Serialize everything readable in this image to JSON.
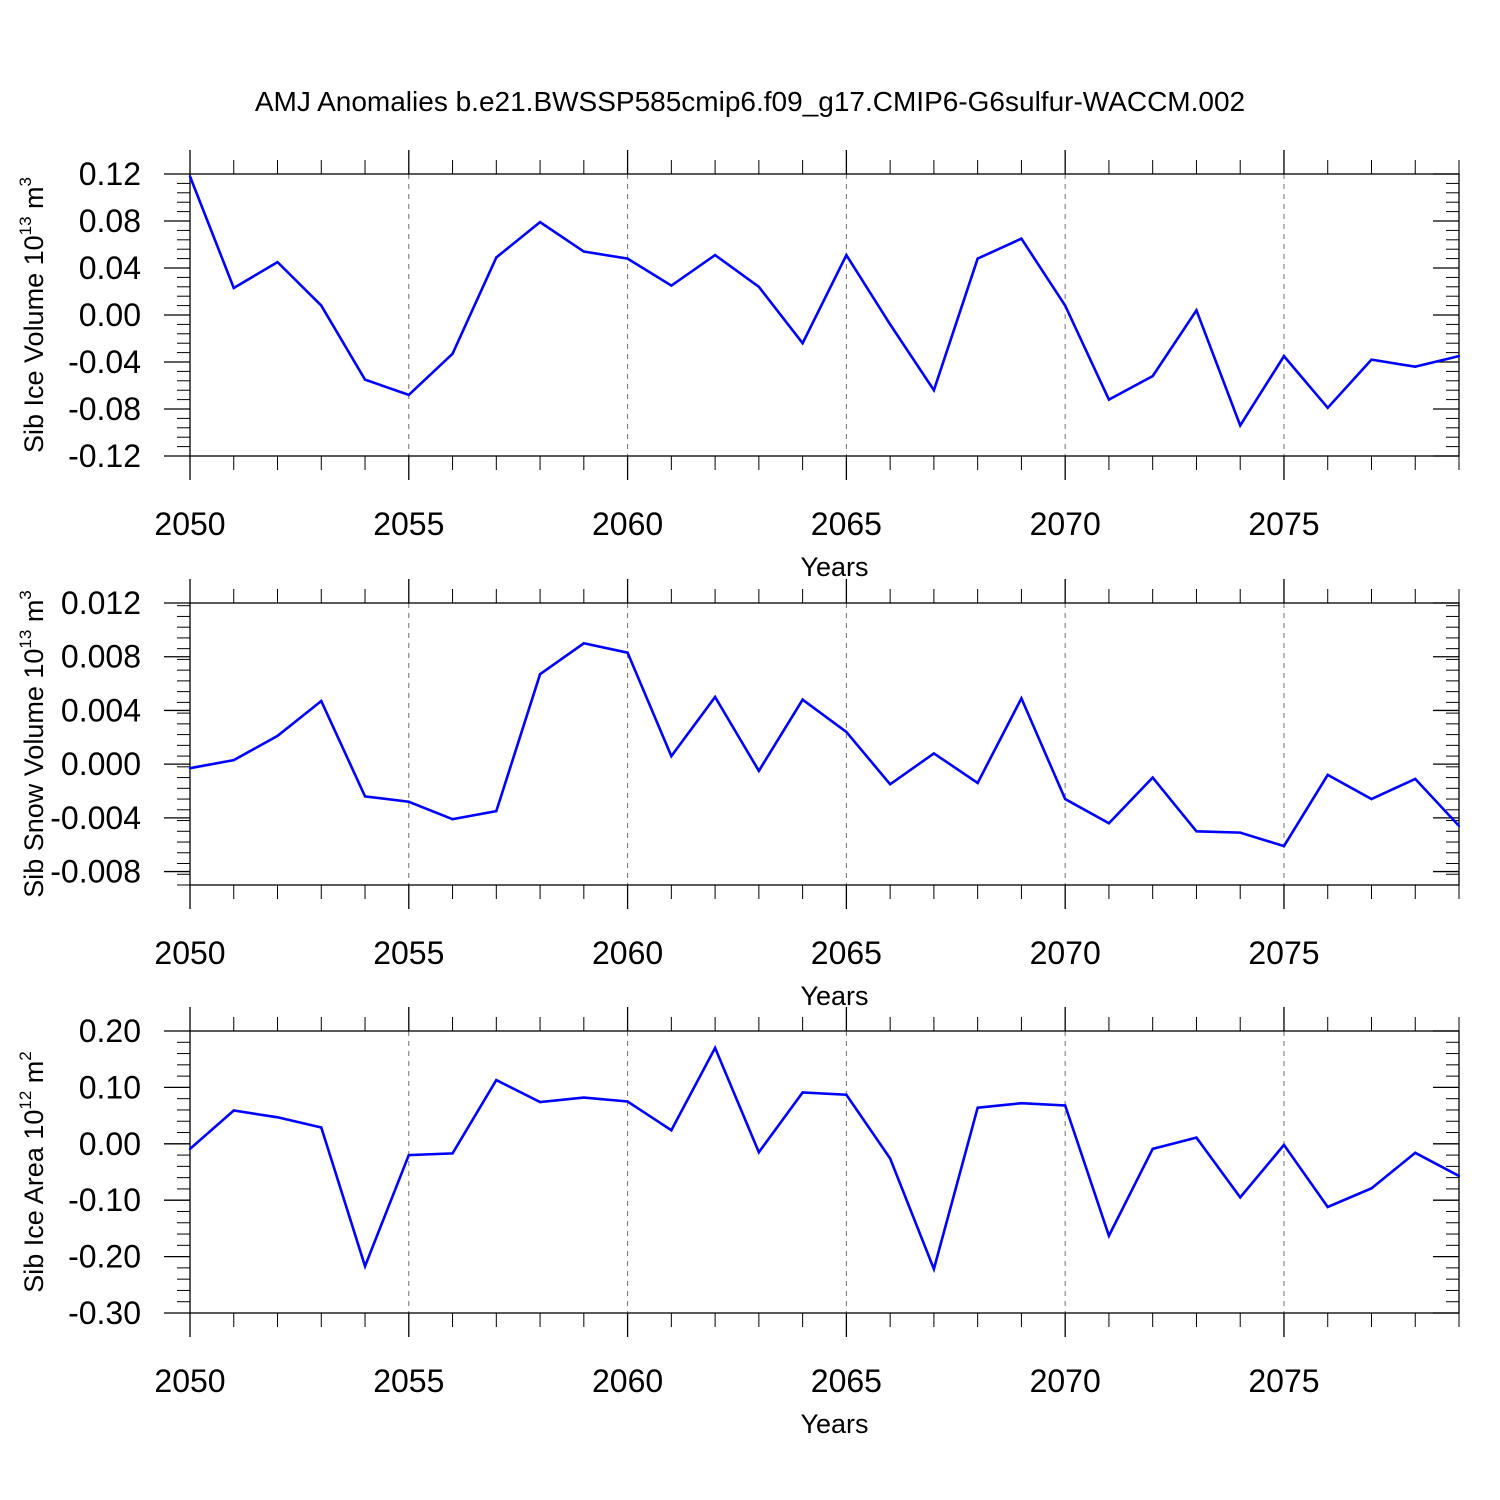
{
  "title": "AMJ Anomalies b.e21.BWSSP585cmip6.f09_g17.CMIP6-G6sulfur-WACCM.002",
  "colors": {
    "line": "#0000ff",
    "axis": "#000000",
    "grid": "#6e6e6e"
  },
  "chart_data": [
    {
      "type": "line",
      "xlabel": "Years",
      "ylabel": {
        "prefix": "Sib Ice Volume 10",
        "exp": "13",
        "unit": " m",
        "unit_exp": "3"
      },
      "xlim": [
        2050,
        2079
      ],
      "ylim": [
        -0.12,
        0.12
      ],
      "xticks": [
        2050,
        2055,
        2060,
        2065,
        2070,
        2075
      ],
      "xtick_labels": [
        "2050",
        "2055",
        "2060",
        "2065",
        "2070",
        "2075"
      ],
      "yticks": [
        -0.12,
        -0.08,
        -0.04,
        0.0,
        0.04,
        0.08,
        0.12
      ],
      "ytick_labels": [
        "-0.12",
        "-0.08",
        "-0.04",
        "0.00",
        "0.04",
        "0.08",
        "0.12"
      ],
      "grid": "vertical dashed at major x ticks",
      "x": [
        2050,
        2051,
        2052,
        2053,
        2054,
        2055,
        2056,
        2057,
        2058,
        2059,
        2060,
        2061,
        2062,
        2063,
        2064,
        2065,
        2066,
        2067,
        2068,
        2069,
        2070,
        2071,
        2072,
        2073,
        2074,
        2075,
        2076,
        2077,
        2078,
        2079
      ],
      "series": [
        {
          "values": [
            0.118,
            0.023,
            0.045,
            0.008,
            -0.055,
            -0.068,
            -0.033,
            0.049,
            0.079,
            0.054,
            0.048,
            0.025,
            0.051,
            0.024,
            -0.024,
            0.051,
            -0.008,
            -0.064,
            0.048,
            0.065,
            0.008,
            -0.072,
            -0.052,
            0.004,
            -0.094,
            -0.035,
            -0.079,
            -0.038,
            -0.044,
            -0.035
          ]
        }
      ]
    },
    {
      "type": "line",
      "xlabel": "Years",
      "ylabel": {
        "prefix": "Sib Snow Volume 10",
        "exp": "13",
        "unit": " m",
        "unit_exp": "3"
      },
      "xlim": [
        2050,
        2079
      ],
      "ylim": [
        -0.009,
        0.012
      ],
      "xticks": [
        2050,
        2055,
        2060,
        2065,
        2070,
        2075
      ],
      "xtick_labels": [
        "2050",
        "2055",
        "2060",
        "2065",
        "2070",
        "2075"
      ],
      "yticks": [
        -0.008,
        -0.004,
        0.0,
        0.004,
        0.008,
        0.012
      ],
      "ytick_labels": [
        "-0.008",
        "-0.004",
        "0.000",
        "0.004",
        "0.008",
        "0.012"
      ],
      "grid": "vertical dashed at major x ticks",
      "x": [
        2050,
        2051,
        2052,
        2053,
        2054,
        2055,
        2056,
        2057,
        2058,
        2059,
        2060,
        2061,
        2062,
        2063,
        2064,
        2065,
        2066,
        2067,
        2068,
        2069,
        2070,
        2071,
        2072,
        2073,
        2074,
        2075,
        2076,
        2077,
        2078,
        2079
      ],
      "series": [
        {
          "values": [
            -0.0003,
            0.0003,
            0.0021,
            0.0047,
            -0.0024,
            -0.0028,
            -0.0041,
            -0.0035,
            0.0067,
            0.009,
            0.0083,
            0.0006,
            0.005,
            -0.0005,
            0.0048,
            0.0024,
            -0.0015,
            0.0008,
            -0.0014,
            0.0049,
            -0.0026,
            -0.0044,
            -0.001,
            -0.005,
            -0.0051,
            -0.0061,
            -0.0008,
            -0.0026,
            -0.0011,
            -0.0046
          ]
        }
      ]
    },
    {
      "type": "line",
      "xlabel": "Years",
      "ylabel": {
        "prefix": "Sib Ice Area 10",
        "exp": "12",
        "unit": " m",
        "unit_exp": "2"
      },
      "xlim": [
        2050,
        2079
      ],
      "ylim": [
        -0.3,
        0.2
      ],
      "xticks": [
        2050,
        2055,
        2060,
        2065,
        2070,
        2075
      ],
      "xtick_labels": [
        "2050",
        "2055",
        "2060",
        "2065",
        "2070",
        "2075"
      ],
      "yticks": [
        -0.3,
        -0.2,
        -0.1,
        0.0,
        0.1,
        0.2
      ],
      "ytick_labels": [
        "-0.30",
        "-0.20",
        "-0.10",
        "0.00",
        "0.10",
        "0.20"
      ],
      "grid": "vertical dashed at major x ticks",
      "x": [
        2050,
        2051,
        2052,
        2053,
        2054,
        2055,
        2056,
        2057,
        2058,
        2059,
        2060,
        2061,
        2062,
        2063,
        2064,
        2065,
        2066,
        2067,
        2068,
        2069,
        2070,
        2071,
        2072,
        2073,
        2074,
        2075,
        2076,
        2077,
        2078,
        2079
      ],
      "series": [
        {
          "values": [
            -0.009,
            0.059,
            0.047,
            0.029,
            -0.217,
            -0.02,
            -0.017,
            0.113,
            0.074,
            0.082,
            0.075,
            0.024,
            0.17,
            -0.015,
            0.091,
            0.087,
            -0.026,
            -0.222,
            0.064,
            0.072,
            0.068,
            -0.163,
            -0.009,
            0.011,
            -0.095,
            -0.002,
            -0.112,
            -0.079,
            -0.016,
            -0.057
          ]
        }
      ]
    }
  ]
}
